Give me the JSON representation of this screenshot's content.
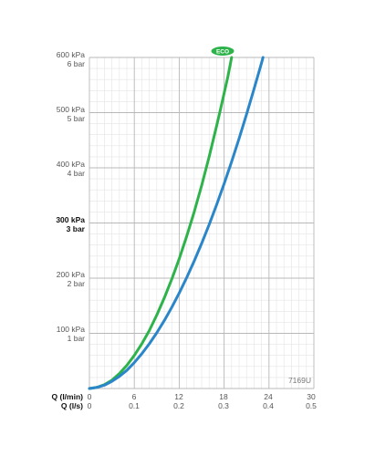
{
  "chart_data": {
    "type": "line",
    "code": "7169U",
    "x_axis": {
      "label_lmin": "Q (l/min)",
      "label_ls": "Q (l/s)",
      "ticks_lmin": [
        "0",
        "6",
        "12",
        "18",
        "24",
        "30"
      ],
      "ticks_ls": [
        "0",
        "0.1",
        "0.2",
        "0.3",
        "0.4",
        "0.5"
      ],
      "range_lmin": [
        0,
        30
      ]
    },
    "y_axis": {
      "range_kpa": [
        0,
        600
      ],
      "ticks": [
        {
          "kpa": "600 kPa",
          "bar": "6 bar"
        },
        {
          "kpa": "500 kPa",
          "bar": "5 bar"
        },
        {
          "kpa": "400 kPa",
          "bar": "4 bar"
        },
        {
          "kpa": "300 kPa",
          "bar": "3 bar"
        },
        {
          "kpa": "200 kPa",
          "bar": "2 bar"
        },
        {
          "kpa": "100 kPa",
          "bar": "1 bar"
        }
      ],
      "highlight_index": 3
    },
    "grid": true,
    "series": [
      {
        "name": "ECO",
        "color": "#2db34a",
        "points": [
          [
            0,
            0
          ],
          [
            1,
            2
          ],
          [
            2,
            7
          ],
          [
            3,
            15
          ],
          [
            4,
            27
          ],
          [
            5,
            42
          ],
          [
            6,
            60
          ],
          [
            7,
            81
          ],
          [
            8,
            105
          ],
          [
            9,
            133
          ],
          [
            10,
            164
          ],
          [
            11,
            198
          ],
          [
            12,
            235
          ],
          [
            13,
            276
          ],
          [
            14,
            320
          ],
          [
            15,
            368
          ],
          [
            16,
            420
          ],
          [
            17,
            476
          ],
          [
            17.5,
            505
          ],
          [
            18,
            535
          ],
          [
            18.5,
            565
          ],
          [
            19,
            600
          ]
        ]
      },
      {
        "name": "",
        "color": "#2a86c8",
        "points": [
          [
            0,
            0
          ],
          [
            1,
            2
          ],
          [
            2,
            6
          ],
          [
            3,
            13
          ],
          [
            4,
            22
          ],
          [
            5,
            33
          ],
          [
            6,
            47
          ],
          [
            7,
            63
          ],
          [
            8,
            81
          ],
          [
            9,
            101
          ],
          [
            10,
            123
          ],
          [
            11,
            147
          ],
          [
            12,
            173
          ],
          [
            13,
            201
          ],
          [
            14,
            231
          ],
          [
            15,
            263
          ],
          [
            16,
            297
          ],
          [
            17,
            333
          ],
          [
            18,
            371
          ],
          [
            19,
            411
          ],
          [
            20,
            453
          ],
          [
            21,
            497
          ],
          [
            22,
            543
          ],
          [
            23,
            590
          ],
          [
            23.2,
            600
          ]
        ]
      }
    ]
  }
}
